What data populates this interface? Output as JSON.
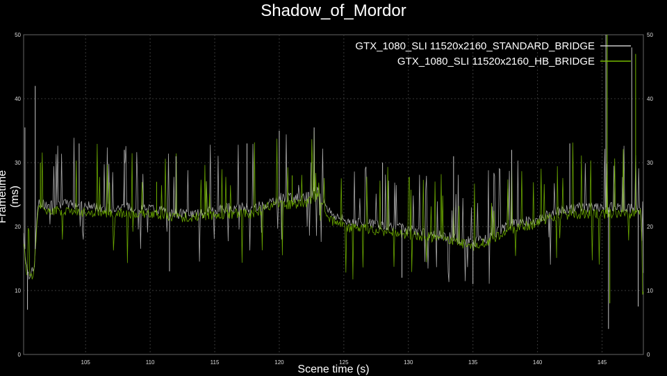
{
  "chart_data": {
    "type": "line",
    "title": "Shadow_of_Mordor",
    "xlabel": "Scene time (s)",
    "ylabel": "Frametime (ms)",
    "xlim": [
      100.2,
      148.2
    ],
    "ylim": [
      0,
      50
    ],
    "xticks": [
      105,
      110,
      115,
      120,
      125,
      130,
      135,
      140,
      145
    ],
    "yticks": [
      0,
      10,
      20,
      30,
      40,
      50
    ],
    "grid": true,
    "legend_position": "top-right",
    "series": [
      {
        "name": "GTX_1080_SLI 11520x2160_STANDARD_BRIDGE",
        "color": "#c8c8c8",
        "x": [
          100.2,
          100.4,
          100.6,
          100.8,
          101.0,
          101.3,
          102,
          104,
          106,
          108,
          110,
          112,
          114,
          116,
          118,
          119,
          120,
          121,
          122,
          123,
          124,
          125,
          127,
          129,
          131,
          133,
          135,
          136,
          138,
          140,
          141,
          143,
          145,
          146,
          147,
          148,
          148.2
        ],
        "values": [
          19,
          14,
          12.5,
          12.8,
          13,
          23.5,
          23.5,
          23.5,
          23.0,
          23.0,
          23.0,
          22.0,
          22.0,
          23.0,
          23.0,
          23.5,
          24.5,
          24.5,
          24.5,
          26.0,
          22.0,
          21.0,
          20.5,
          20.0,
          19.0,
          18.5,
          17.5,
          18.0,
          20.5,
          21.0,
          22.0,
          23.0,
          23.0,
          23.0,
          23.0,
          22.5,
          12
        ]
      },
      {
        "name": "GTX_1080_SLI 11520x2160_HB_BRIDGE",
        "color": "#76b900",
        "x": [
          100.2,
          100.4,
          100.6,
          100.8,
          101.0,
          101.3,
          102,
          104,
          106,
          108,
          110,
          112,
          114,
          116,
          118,
          119,
          120,
          121,
          122,
          123,
          124,
          125,
          127,
          129,
          131,
          133,
          135,
          136,
          138,
          140,
          141,
          143,
          145,
          146,
          147,
          148,
          148.2
        ],
        "values": [
          18,
          13,
          12,
          12.2,
          12.5,
          23,
          22.5,
          22.5,
          22.0,
          22.0,
          22.0,
          21.5,
          21.5,
          22.0,
          22.0,
          23.0,
          23.5,
          23.5,
          23.5,
          25.0,
          21.0,
          20.0,
          19.5,
          19.0,
          18.5,
          18.0,
          17.0,
          17.5,
          19.5,
          20.5,
          21.5,
          22.0,
          22.0,
          22.0,
          22.0,
          22.0,
          10
        ]
      }
    ],
    "spikes": [
      {
        "series": 0,
        "x": 100.3,
        "y": 35.5
      },
      {
        "series": 0,
        "x": 101.1,
        "y": 42
      },
      {
        "series": 0,
        "x": 104.5,
        "y": 33
      },
      {
        "series": 0,
        "x": 108.0,
        "y": 32
      },
      {
        "series": 0,
        "x": 112.0,
        "y": 31
      },
      {
        "series": 0,
        "x": 117.5,
        "y": 33
      },
      {
        "series": 0,
        "x": 120.0,
        "y": 35
      },
      {
        "series": 0,
        "x": 122.7,
        "y": 35.5
      },
      {
        "series": 0,
        "x": 128.0,
        "y": 30
      },
      {
        "series": 0,
        "x": 133.5,
        "y": 31
      },
      {
        "series": 0,
        "x": 138.0,
        "y": 32
      },
      {
        "series": 0,
        "x": 142.5,
        "y": 33
      },
      {
        "series": 0,
        "x": 145.3,
        "y": 50
      },
      {
        "series": 0,
        "x": 147.3,
        "y": 48
      },
      {
        "series": 1,
        "x": 101.5,
        "y": 30
      },
      {
        "series": 1,
        "x": 110.5,
        "y": 27
      },
      {
        "series": 1,
        "x": 121.0,
        "y": 28
      },
      {
        "series": 1,
        "x": 145.4,
        "y": 50
      },
      {
        "series": 1,
        "x": 147.6,
        "y": 47
      }
    ],
    "dips": [
      {
        "series": 0,
        "x": 100.5,
        "y": 7
      },
      {
        "series": 0,
        "x": 111.5,
        "y": 13
      },
      {
        "series": 0,
        "x": 129.5,
        "y": 12
      },
      {
        "series": 0,
        "x": 135.0,
        "y": 11
      },
      {
        "series": 0,
        "x": 145.5,
        "y": 4
      },
      {
        "series": 0,
        "x": 147.8,
        "y": 7.5
      },
      {
        "series": 1,
        "x": 145.6,
        "y": 8
      }
    ]
  }
}
